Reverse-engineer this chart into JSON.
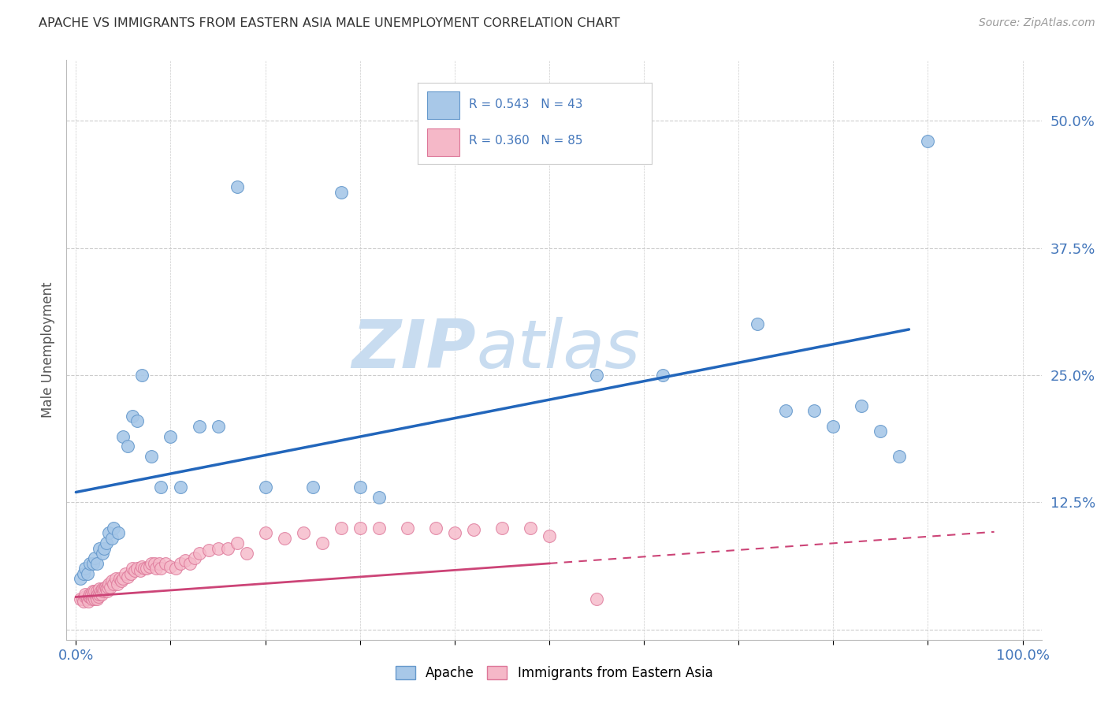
{
  "title": "APACHE VS IMMIGRANTS FROM EASTERN ASIA MALE UNEMPLOYMENT CORRELATION CHART",
  "source": "Source: ZipAtlas.com",
  "ylabel": "Male Unemployment",
  "xlim": [
    -0.01,
    1.02
  ],
  "ylim": [
    -0.01,
    0.56
  ],
  "yticks": [
    0.0,
    0.125,
    0.25,
    0.375,
    0.5
  ],
  "ytick_labels": [
    "",
    "12.5%",
    "25.0%",
    "37.5%",
    "50.0%"
  ],
  "xticks": [
    0.0,
    0.1,
    0.2,
    0.3,
    0.4,
    0.5,
    0.6,
    0.7,
    0.8,
    0.9,
    1.0
  ],
  "xtick_labels": [
    "0.0%",
    "",
    "",
    "",
    "",
    "",
    "",
    "",
    "",
    "",
    "100.0%"
  ],
  "apache_color": "#A8C8E8",
  "apache_edge_color": "#6699CC",
  "pink_color": "#F5B8C8",
  "pink_edge_color": "#DD7799",
  "line_blue": "#2266BB",
  "line_pink": "#CC4477",
  "legend_label_apache": "Apache",
  "legend_label_pink": "Immigrants from Eastern Asia",
  "watermark_zip": "ZIP",
  "watermark_atlas": "atlas",
  "bg_color": "#FFFFFF",
  "grid_color": "#CCCCCC",
  "title_color": "#333333",
  "axis_label_color": "#555555",
  "tick_color": "#4477BB",
  "apache_x": [
    0.005,
    0.008,
    0.01,
    0.012,
    0.015,
    0.018,
    0.02,
    0.022,
    0.025,
    0.028,
    0.03,
    0.032,
    0.035,
    0.038,
    0.04,
    0.045,
    0.05,
    0.055,
    0.06,
    0.065,
    0.07,
    0.08,
    0.09,
    0.1,
    0.11,
    0.13,
    0.15,
    0.17,
    0.2,
    0.25,
    0.28,
    0.3,
    0.32,
    0.55,
    0.62,
    0.72,
    0.75,
    0.78,
    0.8,
    0.83,
    0.85,
    0.87,
    0.9
  ],
  "apache_y": [
    0.05,
    0.055,
    0.06,
    0.055,
    0.065,
    0.065,
    0.07,
    0.065,
    0.08,
    0.075,
    0.08,
    0.085,
    0.095,
    0.09,
    0.1,
    0.095,
    0.19,
    0.18,
    0.21,
    0.205,
    0.25,
    0.17,
    0.14,
    0.19,
    0.14,
    0.2,
    0.2,
    0.435,
    0.14,
    0.14,
    0.43,
    0.14,
    0.13,
    0.25,
    0.25,
    0.3,
    0.215,
    0.215,
    0.2,
    0.22,
    0.195,
    0.17,
    0.48
  ],
  "pink_x": [
    0.005,
    0.007,
    0.008,
    0.01,
    0.01,
    0.012,
    0.013,
    0.014,
    0.015,
    0.015,
    0.016,
    0.017,
    0.018,
    0.018,
    0.02,
    0.02,
    0.021,
    0.022,
    0.022,
    0.023,
    0.024,
    0.025,
    0.025,
    0.026,
    0.027,
    0.028,
    0.029,
    0.03,
    0.031,
    0.032,
    0.033,
    0.034,
    0.035,
    0.036,
    0.038,
    0.04,
    0.042,
    0.044,
    0.046,
    0.048,
    0.05,
    0.052,
    0.055,
    0.058,
    0.06,
    0.062,
    0.065,
    0.068,
    0.07,
    0.072,
    0.075,
    0.078,
    0.08,
    0.083,
    0.085,
    0.088,
    0.09,
    0.095,
    0.1,
    0.105,
    0.11,
    0.115,
    0.12,
    0.125,
    0.13,
    0.14,
    0.15,
    0.16,
    0.17,
    0.18,
    0.2,
    0.22,
    0.24,
    0.26,
    0.28,
    0.3,
    0.32,
    0.35,
    0.38,
    0.4,
    0.42,
    0.45,
    0.48,
    0.5,
    0.55
  ],
  "pink_y": [
    0.03,
    0.03,
    0.028,
    0.032,
    0.035,
    0.03,
    0.028,
    0.032,
    0.032,
    0.035,
    0.035,
    0.03,
    0.033,
    0.038,
    0.03,
    0.038,
    0.032,
    0.03,
    0.038,
    0.035,
    0.032,
    0.035,
    0.04,
    0.038,
    0.035,
    0.04,
    0.038,
    0.04,
    0.042,
    0.04,
    0.038,
    0.042,
    0.045,
    0.042,
    0.048,
    0.045,
    0.05,
    0.045,
    0.05,
    0.048,
    0.05,
    0.055,
    0.052,
    0.055,
    0.06,
    0.058,
    0.06,
    0.058,
    0.062,
    0.06,
    0.06,
    0.062,
    0.065,
    0.065,
    0.06,
    0.065,
    0.06,
    0.065,
    0.062,
    0.06,
    0.065,
    0.068,
    0.065,
    0.07,
    0.075,
    0.078,
    0.08,
    0.08,
    0.085,
    0.075,
    0.095,
    0.09,
    0.095,
    0.085,
    0.1,
    0.1,
    0.1,
    0.1,
    0.1,
    0.095,
    0.098,
    0.1,
    0.1,
    0.092,
    0.03
  ],
  "apache_line_x0": 0.0,
  "apache_line_x1": 0.88,
  "apache_line_y0": 0.135,
  "apache_line_y1": 0.295,
  "pink_line_solid_x0": 0.0,
  "pink_line_solid_x1": 0.5,
  "pink_line_y0": 0.032,
  "pink_line_y1": 0.065,
  "pink_line_dash_x0": 0.5,
  "pink_line_dash_x1": 0.97,
  "pink_line_dash_y1": 0.095
}
